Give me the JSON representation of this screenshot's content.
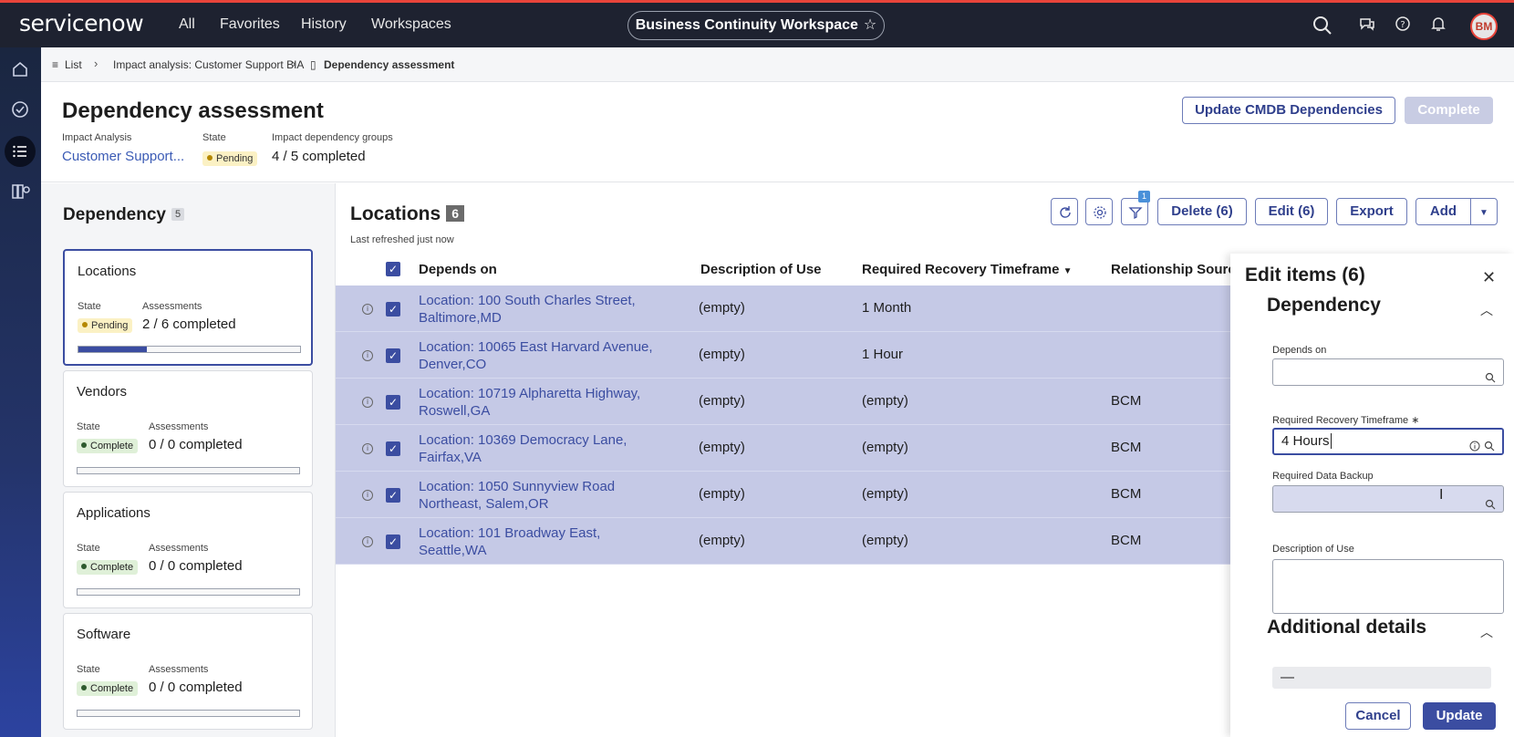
{
  "nav": {
    "logo_main": "servicenow",
    "items": [
      "All",
      "Favorites",
      "History",
      "Workspaces"
    ],
    "workspace_pill": "Business Continuity Workspace",
    "avatar": "BM"
  },
  "breadcrumb": {
    "items": [
      "List",
      "Impact analysis: Customer Support BIA",
      "Dependency assessment"
    ]
  },
  "header": {
    "title": "Dependency assessment",
    "impact_analysis_label": "Impact Analysis",
    "impact_analysis_value": "Customer Support...",
    "state_label": "State",
    "state_value": "Pending",
    "groups_label": "Impact dependency groups",
    "groups_value": "4 / 5 completed",
    "update_button": "Update CMDB Dependencies",
    "complete_button": "Complete"
  },
  "left_panel": {
    "title": "Dependency",
    "count": "5",
    "cards": [
      {
        "title": "Locations",
        "state_label": "State",
        "state": "Pending",
        "assess_label": "Assessments",
        "assessments": "2 / 6 completed",
        "progress": 0.33
      },
      {
        "title": "Vendors",
        "state_label": "State",
        "state": "Complete",
        "assess_label": "Assessments",
        "assessments": "0 / 0 completed",
        "progress": 0
      },
      {
        "title": "Applications",
        "state_label": "State",
        "state": "Complete",
        "assess_label": "Assessments",
        "assessments": "0 / 0 completed",
        "progress": 0
      },
      {
        "title": "Software",
        "state_label": "State",
        "state": "Complete",
        "assess_label": "Assessments",
        "assessments": "0 / 0 completed",
        "progress": 0
      }
    ]
  },
  "list": {
    "title": "Locations",
    "count": "6",
    "refreshed": "Last refreshed just now",
    "filter_badge": "1",
    "delete_button": "Delete (6)",
    "edit_button": "Edit (6)",
    "export_button": "Export",
    "add_button": "Add",
    "columns": [
      "Depends on",
      "Description of Use",
      "Required Recovery Timeframe",
      "Relationship Source"
    ],
    "rows": [
      {
        "depends_on": "Location: 100 South Charles Street, Baltimore,MD",
        "description": "(empty)",
        "timeframe": "1 Month",
        "source": ""
      },
      {
        "depends_on": "Location: 10065 East Harvard Avenue, Denver,CO",
        "description": "(empty)",
        "timeframe": "1 Hour",
        "source": ""
      },
      {
        "depends_on": "Location: 10719 Alpharetta Highway, Roswell,GA",
        "description": "(empty)",
        "timeframe": "(empty)",
        "source": "BCM"
      },
      {
        "depends_on": "Location: 10369 Democracy Lane, Fairfax,VA",
        "description": "(empty)",
        "timeframe": "(empty)",
        "source": "BCM"
      },
      {
        "depends_on": "Location: 1050 Sunnyview Road Northeast, Salem,OR",
        "description": "(empty)",
        "timeframe": "(empty)",
        "source": "BCM"
      },
      {
        "depends_on": "Location: 101 Broadway East, Seattle,WA",
        "description": "(empty)",
        "timeframe": "(empty)",
        "source": "BCM"
      }
    ]
  },
  "edit_panel": {
    "title": "Edit items (6)",
    "section_dependency": "Dependency",
    "depends_on_label": "Depends on",
    "depends_on_value": "",
    "timeframe_label": "Required Recovery Timeframe",
    "timeframe_value": "4 Hours",
    "backup_label": "Required Data Backup",
    "backup_value": "",
    "description_label": "Description of Use",
    "section_additional": "Additional details",
    "additional_value": "—",
    "cancel_button": "Cancel",
    "update_button": "Update"
  },
  "colors": {
    "accent": "#3b4da1",
    "topbar": "#1e2230",
    "selected_row": "#c5c9e6"
  }
}
